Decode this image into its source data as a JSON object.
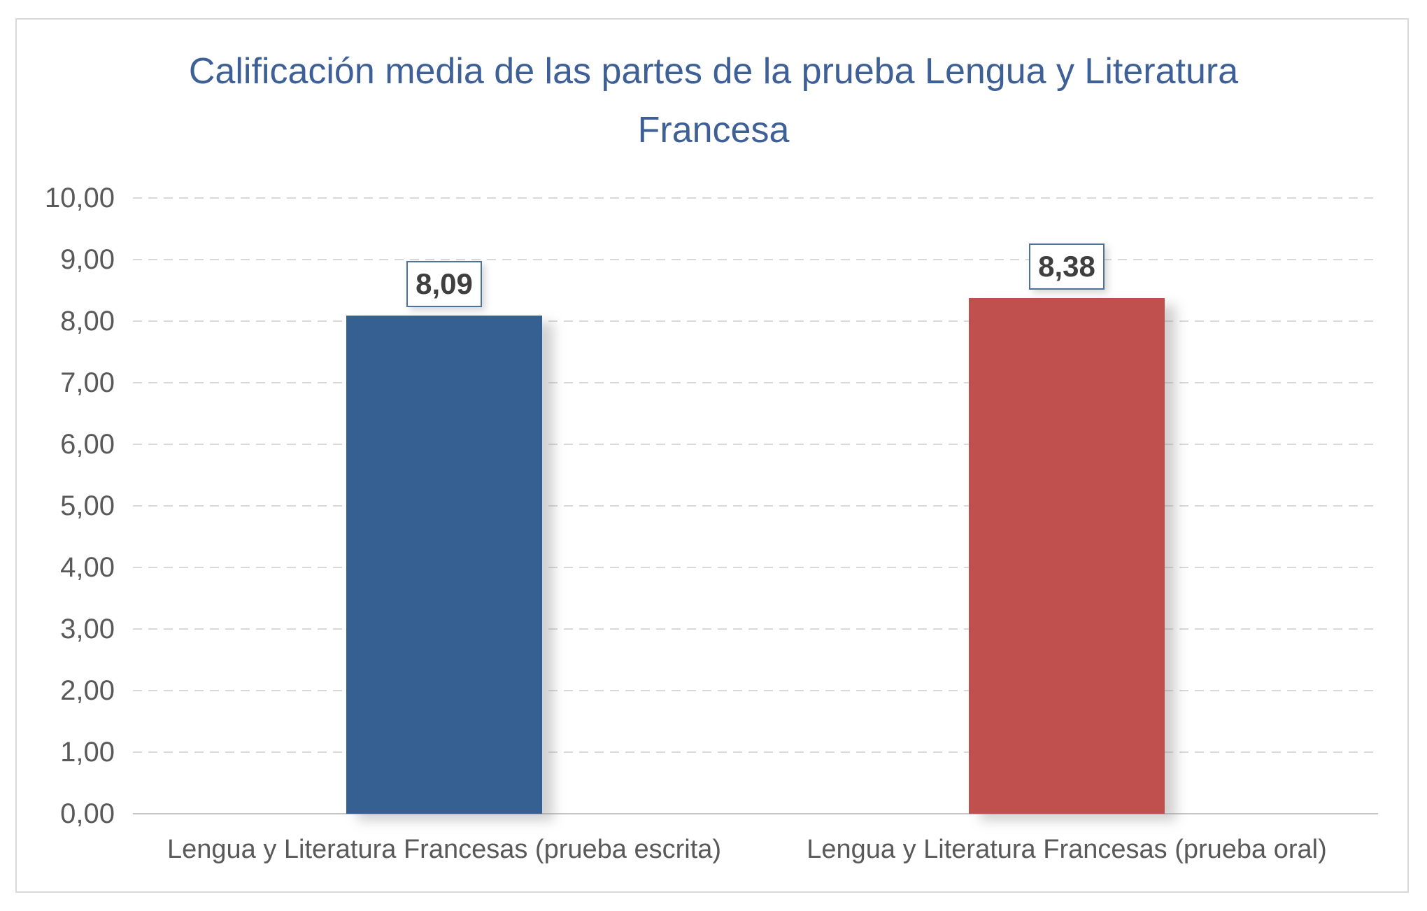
{
  "chart_data": {
    "type": "bar",
    "title": "Calificación media de las partes de la prueba Lengua y Literatura Francesa",
    "categories": [
      "Lengua y Literatura Francesas (prueba escrita)",
      "Lengua y Literatura Francesas (prueba oral)"
    ],
    "values": [
      8.09,
      8.38
    ],
    "value_labels": [
      "8,09",
      "8,38"
    ],
    "bar_colors": [
      "#366092",
      "#C0504D"
    ],
    "ylim": [
      0,
      10
    ],
    "ytick_values": [
      0,
      1,
      2,
      3,
      4,
      5,
      6,
      7,
      8,
      9,
      10
    ],
    "ytick_labels": [
      "0,00",
      "1,00",
      "2,00",
      "3,00",
      "4,00",
      "5,00",
      "6,00",
      "7,00",
      "8,00",
      "9,00",
      "10,00"
    ],
    "grid": "horizontal-dashed",
    "legend": "none",
    "xlabel": "",
    "ylabel": ""
  },
  "colors": {
    "background": "#FFFFFF",
    "chart_border": "#D9D9D9",
    "title": "#3E6096",
    "axis_text": "#595959",
    "gridline": "#D9D9D9",
    "axis_line": "#C6C6C6",
    "value_label_text": "#3F3F3F",
    "value_label_border": "#4E729B"
  }
}
